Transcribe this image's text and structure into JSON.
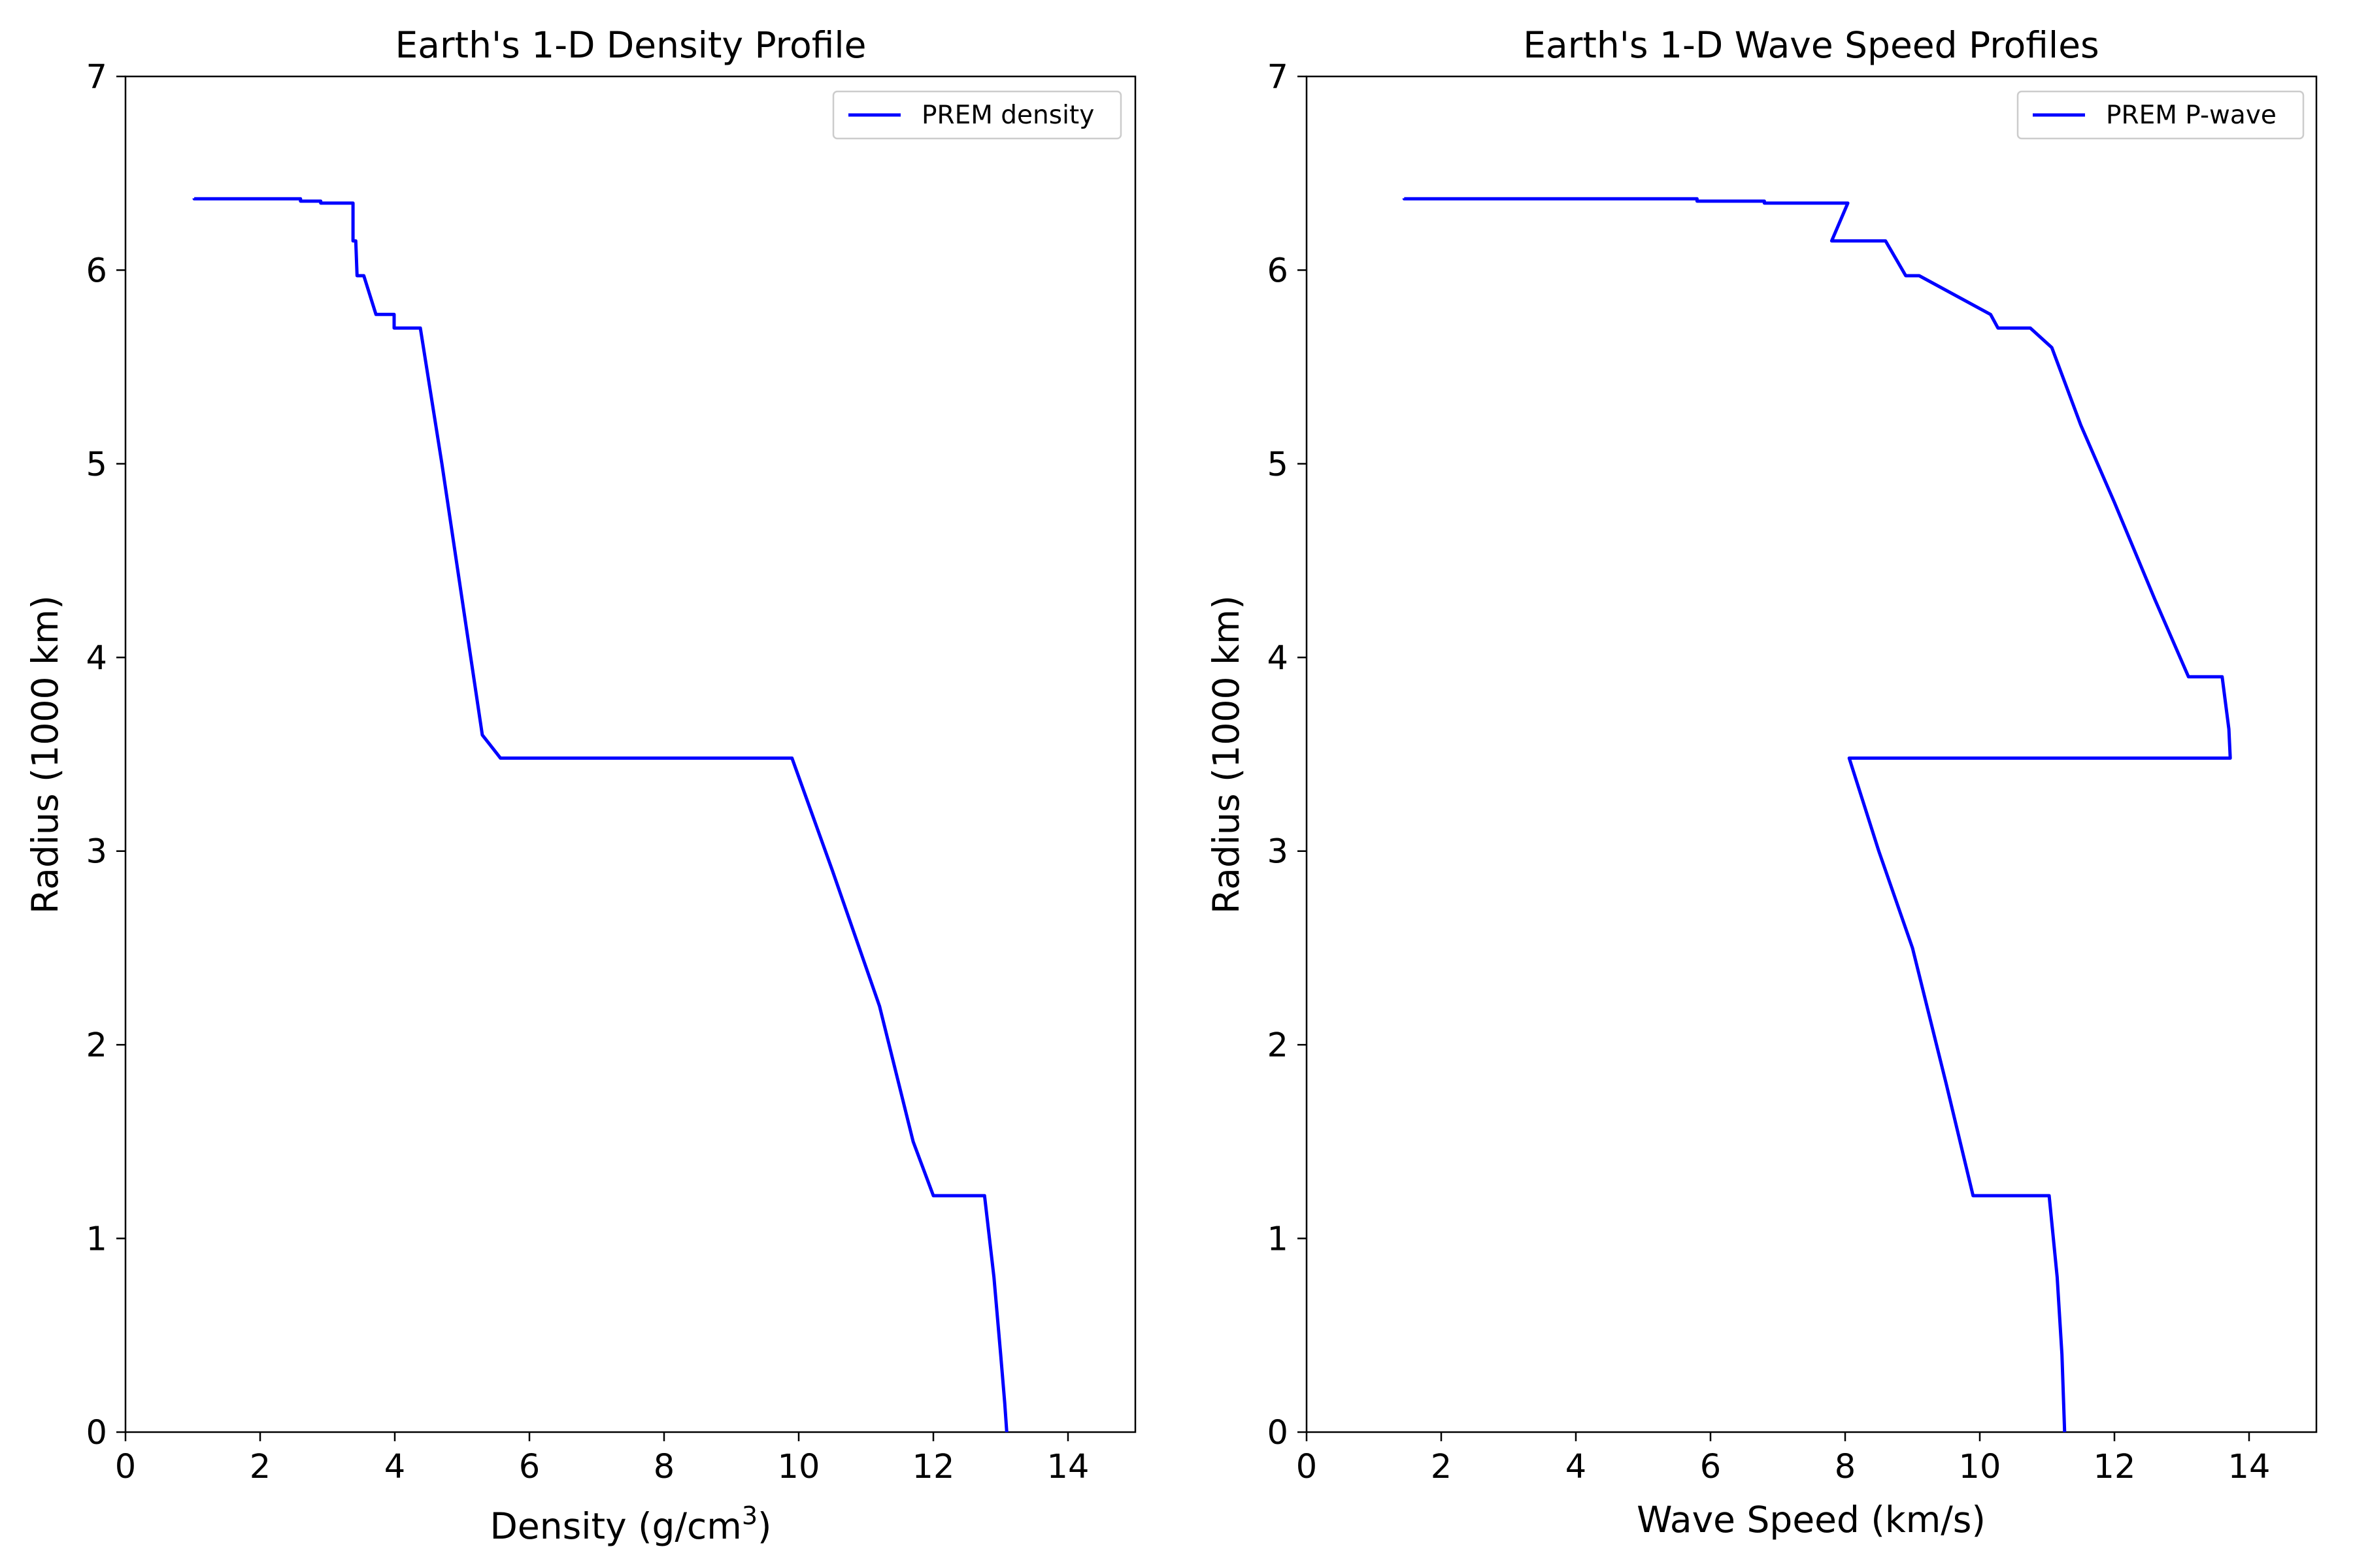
{
  "chart_data": [
    {
      "type": "line",
      "title": "Earth's 1-D Density Profile",
      "xlabel": "Density (g/cm",
      "xlabel_sup": "3",
      "xlabel_end": ")",
      "ylabel": "Radius (1000 km)",
      "xlim": [
        0,
        15
      ],
      "ylim": [
        0,
        7
      ],
      "xticks": [
        0,
        2,
        4,
        6,
        8,
        10,
        12,
        14
      ],
      "yticks": [
        0,
        1,
        2,
        3,
        4,
        5,
        6,
        7
      ],
      "grid": false,
      "legend_position": "top-right",
      "color": "#0000ff",
      "series": [
        {
          "name": "PREM density",
          "x": [
            1.02,
            1.02,
            2.6,
            2.6,
            2.9,
            2.9,
            3.38,
            3.38,
            3.42,
            3.44,
            3.54,
            3.72,
            3.99,
            3.99,
            4.38,
            4.7,
            5.0,
            5.3,
            5.57,
            9.9,
            10.5,
            11.2,
            11.7,
            12.0,
            12.17,
            12.76,
            12.9,
            13.0,
            13.06,
            13.09
          ],
          "y": [
            6.371,
            6.368,
            6.368,
            6.356,
            6.356,
            6.346,
            6.346,
            6.151,
            6.151,
            5.971,
            5.971,
            5.771,
            5.771,
            5.701,
            5.701,
            5.0,
            4.3,
            3.6,
            3.48,
            3.48,
            2.9,
            2.2,
            1.5,
            1.221,
            1.221,
            1.221,
            0.8,
            0.4,
            0.15,
            0.0
          ]
        }
      ]
    },
    {
      "type": "line",
      "title": "Earth's 1-D Wave Speed Profiles",
      "xlabel": "Wave Speed (km/s)",
      "ylabel": "Radius (1000 km)",
      "xlim": [
        0,
        15
      ],
      "ylim": [
        0,
        7
      ],
      "xticks": [
        0,
        2,
        4,
        6,
        8,
        10,
        12,
        14
      ],
      "yticks": [
        0,
        1,
        2,
        3,
        4,
        5,
        6,
        7
      ],
      "grid": false,
      "legend_position": "top-right",
      "color": "#0000ff",
      "series": [
        {
          "name": "PREM P-wave",
          "x": [
            1.45,
            1.45,
            5.8,
            5.8,
            6.8,
            6.8,
            8.04,
            7.8,
            8.6,
            8.9,
            9.1,
            10.16,
            10.27,
            10.75,
            11.07,
            11.5,
            12.0,
            12.6,
            13.1,
            13.6,
            13.7,
            13.72,
            8.06,
            8.5,
            9.0,
            9.5,
            9.9,
            10.36,
            11.03,
            11.15,
            11.22,
            11.26
          ],
          "y": [
            6.371,
            6.368,
            6.368,
            6.356,
            6.356,
            6.346,
            6.346,
            6.151,
            6.151,
            5.971,
            5.971,
            5.771,
            5.701,
            5.701,
            5.6,
            5.2,
            4.8,
            4.3,
            3.9,
            3.9,
            3.63,
            3.48,
            3.48,
            3.0,
            2.5,
            1.8,
            1.221,
            1.221,
            1.221,
            0.8,
            0.4,
            0.0
          ]
        }
      ]
    }
  ]
}
